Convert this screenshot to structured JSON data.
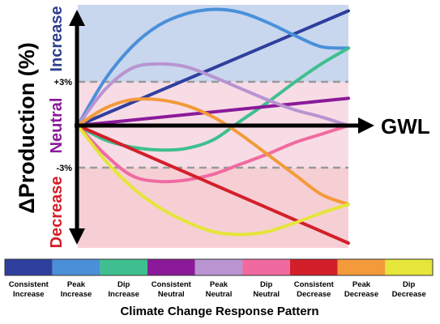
{
  "chart_data": {
    "type": "line",
    "title": "",
    "ylabel": "ΔProduction (%)",
    "xlabel": "GWL",
    "zones": [
      {
        "label": "Increase",
        "color": "#2e3f8f"
      },
      {
        "label": "Neutral",
        "color": "#8b1a9a"
      },
      {
        "label": "Decrease",
        "color": "#d31f2a"
      }
    ],
    "thresholds": [
      {
        "label": "+3%",
        "value": 3
      },
      {
        "label": "-3%",
        "value": -3
      }
    ],
    "ylim": [
      -8,
      8.5
    ],
    "xlim": [
      0,
      10
    ],
    "series": [
      {
        "name": "Consistent Increase",
        "color": "#2f3f9e",
        "x": [
          0,
          10
        ],
        "y": [
          0,
          8
        ]
      },
      {
        "name": "Peak Increase",
        "color": "#4a90d9",
        "x": [
          0,
          1,
          2,
          3,
          4,
          5,
          6,
          7,
          8,
          9,
          10
        ],
        "y": [
          0,
          3.2,
          5.5,
          7,
          7.8,
          8.1,
          7.9,
          7.2,
          6.3,
          5.5,
          5.4
        ]
      },
      {
        "name": "Dip Increase",
        "color": "#3fbf8f",
        "x": [
          0,
          1,
          2,
          3,
          4,
          5,
          6,
          7,
          8,
          9,
          10
        ],
        "y": [
          0,
          -1,
          -1.5,
          -1.7,
          -1.6,
          -1,
          0.3,
          1.6,
          3,
          4.3,
          5.4
        ]
      },
      {
        "name": "Consistent Neutral",
        "color": "#8b1a9a",
        "x": [
          0,
          10
        ],
        "y": [
          0,
          1.9
        ]
      },
      {
        "name": "Peak Neutral",
        "color": "#b894d0",
        "x": [
          0,
          1,
          2,
          3,
          4,
          5,
          6,
          7,
          8,
          9,
          10
        ],
        "y": [
          0,
          2.5,
          4,
          4.3,
          4.1,
          3.4,
          2.6,
          1.8,
          1.1,
          0.6,
          0
        ]
      },
      {
        "name": "Dip Neutral",
        "color": "#f06aa0",
        "x": [
          0,
          1,
          2,
          3,
          4,
          5,
          6,
          7,
          8,
          9,
          10
        ],
        "y": [
          0,
          -2,
          -3.5,
          -3.9,
          -3.8,
          -3.4,
          -2.7,
          -2,
          -1.2,
          -0.6,
          0
        ]
      },
      {
        "name": "Consistent Decrease",
        "color": "#d31f2a",
        "x": [
          0,
          10
        ],
        "y": [
          0,
          -8.2
        ]
      },
      {
        "name": "Peak Decrease",
        "color": "#f39a3a",
        "x": [
          0,
          1,
          2,
          3,
          4,
          5,
          6,
          7,
          8,
          9,
          10
        ],
        "y": [
          0,
          1.2,
          1.8,
          1.8,
          1.4,
          0.6,
          -0.6,
          -2,
          -3.4,
          -4.8,
          -5.5
        ]
      },
      {
        "name": "Dip Decrease",
        "color": "#e5e53a",
        "x": [
          0,
          1,
          2,
          3,
          4,
          5,
          6,
          7,
          8,
          9,
          10
        ],
        "y": [
          0,
          -2.4,
          -4.3,
          -5.7,
          -6.7,
          -7.4,
          -7.6,
          -7.4,
          -6.8,
          -6.1,
          -5.5
        ]
      }
    ],
    "legend": {
      "placement": "bottom",
      "title": "Climate Change Response Pattern",
      "items": [
        {
          "line1": "Consistent",
          "line2": "Increase",
          "color": "#2f3f9e"
        },
        {
          "line1": "Peak",
          "line2": "Increase",
          "color": "#4a90d9"
        },
        {
          "line1": "Dip",
          "line2": "Increase",
          "color": "#3fbf8f"
        },
        {
          "line1": "Consistent",
          "line2": "Neutral",
          "color": "#8b1a9a"
        },
        {
          "line1": "Peak",
          "line2": "Neutral",
          "color": "#b894d0"
        },
        {
          "line1": "Dip",
          "line2": "Neutral",
          "color": "#f06aa0"
        },
        {
          "line1": "Consistent",
          "line2": "Decrease",
          "color": "#d31f2a"
        },
        {
          "line1": "Peak",
          "line2": "Decrease",
          "color": "#f39a3a"
        },
        {
          "line1": "Dip",
          "line2": "Decrease",
          "color": "#e5e53a"
        }
      ]
    },
    "background": {
      "increase": "#c8d6ee",
      "neutral": "#f7dce6",
      "decrease": "#f6cfd4"
    }
  }
}
